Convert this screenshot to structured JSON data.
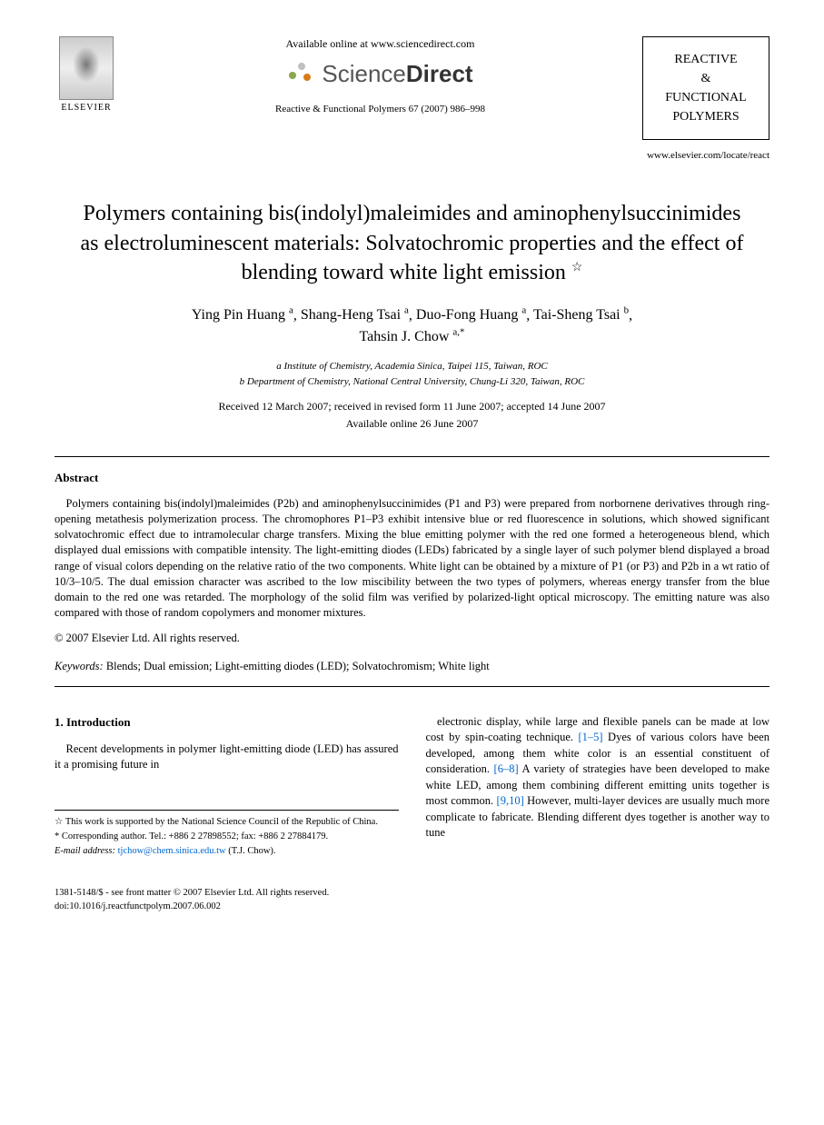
{
  "header": {
    "elsevier_label": "ELSEVIER",
    "available_online": "Available online at www.sciencedirect.com",
    "sciencedirect_a": "Science",
    "sciencedirect_b": "Direct",
    "journal_ref": "Reactive & Functional Polymers 67 (2007) 986–998",
    "journal_box_line1": "REACTIVE",
    "journal_box_line2": "&",
    "journal_box_line3": "FUNCTIONAL",
    "journal_box_line4": "POLYMERS",
    "site_link": "www.elsevier.com/locate/react"
  },
  "title": "Polymers containing bis(indolyl)maleimides and aminophenylsuccinimides as electroluminescent materials: Solvatochromic properties and the effect of blending toward white light emission",
  "star": "☆",
  "authors": [
    {
      "name": "Ying Pin Huang",
      "sup": "a"
    },
    {
      "name": "Shang-Heng Tsai",
      "sup": "a"
    },
    {
      "name": "Duo-Fong Huang",
      "sup": "a"
    },
    {
      "name": "Tai-Sheng Tsai",
      "sup": "b"
    },
    {
      "name": "Tahsin J. Chow",
      "sup": "a,*"
    }
  ],
  "affiliations": {
    "a": "a Institute of Chemistry, Academia Sinica, Taipei 115, Taiwan, ROC",
    "b": "b Department of Chemistry, National Central University, Chung-Li 320, Taiwan, ROC"
  },
  "dates": {
    "received": "Received 12 March 2007; received in revised form 11 June 2007; accepted 14 June 2007",
    "available": "Available online 26 June 2007"
  },
  "abstract": {
    "heading": "Abstract",
    "body": "Polymers containing bis(indolyl)maleimides (P2b) and aminophenylsuccinimides (P1 and P3) were prepared from norbornene derivatives through ring-opening metathesis polymerization process. The chromophores P1–P3 exhibit intensive blue or red fluorescence in solutions, which showed significant solvatochromic effect due to intramolecular charge transfers. Mixing the blue emitting polymer with the red one formed a heterogeneous blend, which displayed dual emissions with compatible intensity. The light-emitting diodes (LEDs) fabricated by a single layer of such polymer blend displayed a broad range of visual colors depending on the relative ratio of the two components. White light can be obtained by a mixture of P1 (or P3) and P2b in a wt ratio of 10/3–10/5. The dual emission character was ascribed to the low miscibility between the two types of polymers, whereas energy transfer from the blue domain to the red one was retarded. The morphology of the solid film was verified by polarized-light optical microscopy. The emitting nature was also compared with those of random copolymers and monomer mixtures.",
    "copyright": "© 2007 Elsevier Ltd. All rights reserved."
  },
  "keywords_label": "Keywords:",
  "keywords_text": " Blends; Dual emission; Light-emitting diodes (LED); Solvatochromism; White light",
  "section1": {
    "heading": "1. Introduction",
    "col1": "Recent developments in polymer light-emitting diode (LED) has assured it a promising future in",
    "col2_a": "electronic display, while large and flexible panels can be made at low cost by spin-coating technique. ",
    "col2_cite1": "[1–5]",
    "col2_b": " Dyes of various colors have been developed, among them white color is an essential constituent of consideration. ",
    "col2_cite2": "[6–8]",
    "col2_c": " A variety of strategies have been developed to make white LED, among them combining different emitting units together is most common. ",
    "col2_cite3": "[9,10]",
    "col2_d": " However, multi-layer devices are usually much more complicate to fabricate. Blending different dyes together is another way to tune"
  },
  "footnotes": {
    "support": "☆ This work is supported by the National Science Council of the Republic of China.",
    "corresponding": "* Corresponding author. Tel.: +886 2 27898552; fax: +886 2 27884179.",
    "email_label": "E-mail address: ",
    "email": "tjchow@chem.sinica.edu.tw",
    "email_who": " (T.J. Chow)."
  },
  "bottom": {
    "line1": "1381-5148/$ - see front matter © 2007 Elsevier Ltd. All rights reserved.",
    "line2": "doi:10.1016/j.reactfunctpolym.2007.06.002"
  }
}
